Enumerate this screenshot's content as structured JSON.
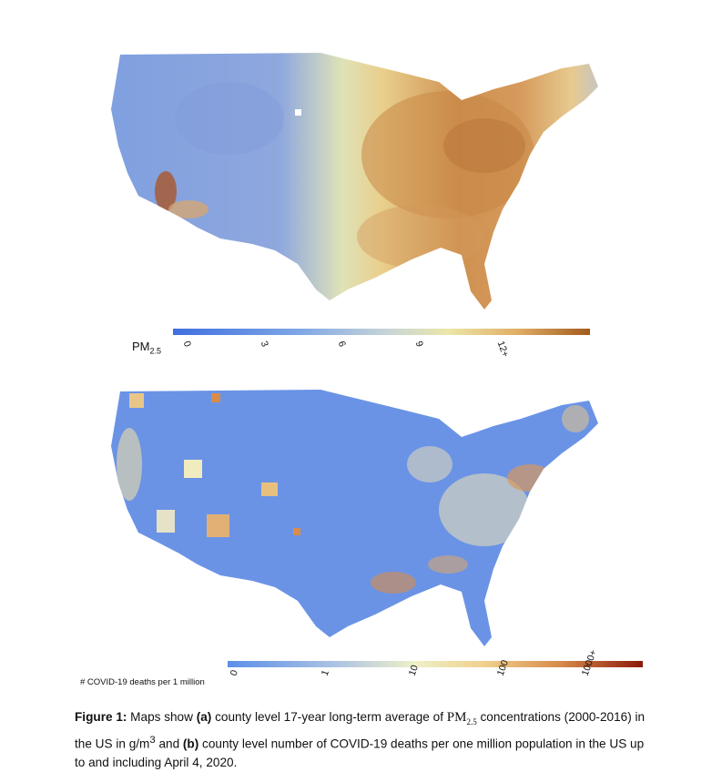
{
  "map_a": {
    "legend_title": "PM",
    "legend_title_sub": "2.5",
    "ticks": [
      "0",
      "3",
      "6",
      "9",
      "12+"
    ]
  },
  "map_b": {
    "legend_title": "# COVID-19 deaths per 1 million",
    "ticks": [
      "0",
      "1",
      "10",
      "100",
      "1000+"
    ]
  },
  "caption": {
    "label": "Figure 1:",
    "part1": " Maps show ",
    "a": "(a)",
    "part2": " county level 17-year long-term average of ",
    "pm": "PM",
    "pm_sub": "2.5",
    "part3": " concentrations (2000-2016) in the US in   g/m",
    "sup": "3",
    "part4": " and ",
    "b": "(b)",
    "part5": " county level number of COVID-19 deaths per one million population in the US up to and including April 4, 2020."
  },
  "colors": {
    "low": "#3f6fe0",
    "mid": "#eee7b0",
    "high": "#a25a1e"
  }
}
